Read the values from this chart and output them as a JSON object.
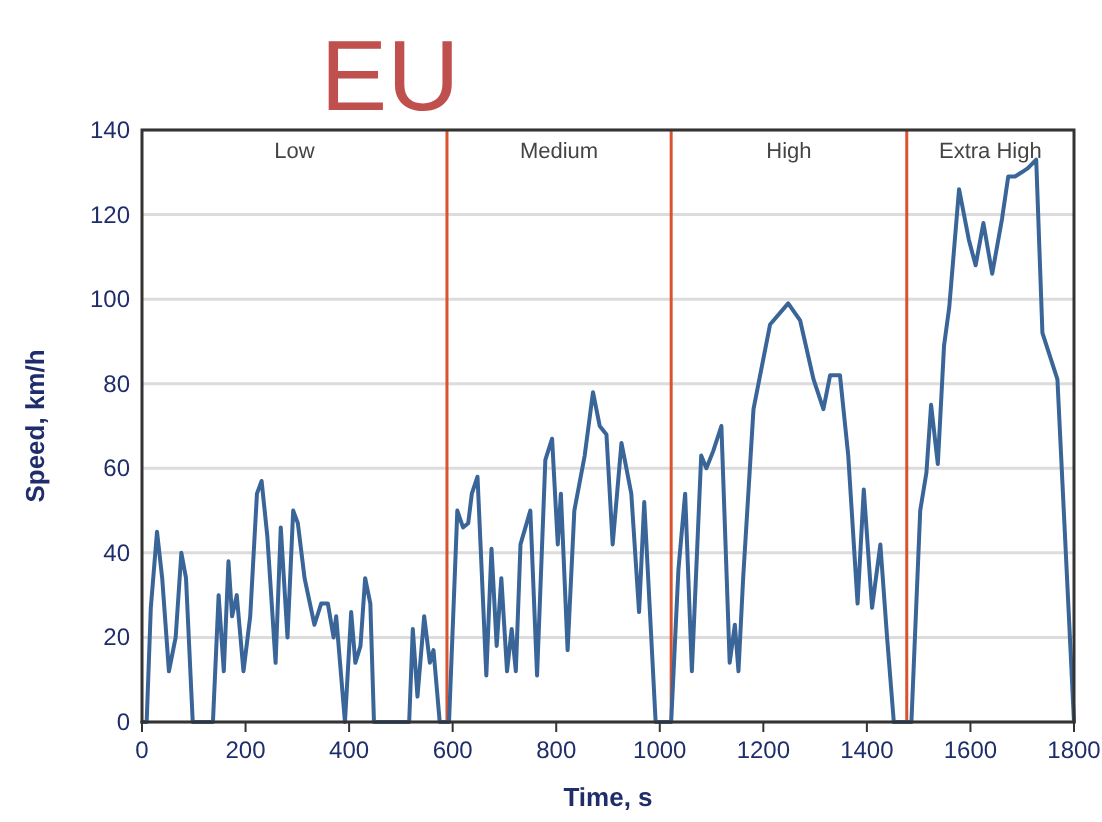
{
  "chart_data": {
    "type": "line",
    "title": "EU",
    "xlabel": "Time, s",
    "ylabel": "Speed, km/h",
    "xlim": [
      0,
      1800
    ],
    "xticks": [
      0,
      200,
      400,
      600,
      800,
      1000,
      1200,
      1400,
      1600,
      1800
    ],
    "ylim": [
      0,
      140
    ],
    "yticks": [
      0,
      20,
      40,
      60,
      80,
      100,
      120,
      140
    ],
    "grid": "y",
    "line_style": "solid",
    "marker": "none",
    "x": [
      0,
      9,
      17,
      29,
      39,
      52,
      65,
      76,
      85,
      98,
      137,
      148,
      158,
      167,
      174,
      183,
      196,
      209,
      222,
      231,
      242,
      258,
      268,
      281,
      292,
      301,
      314,
      333,
      346,
      359,
      370,
      375,
      392,
      404,
      412,
      422,
      431,
      441,
      448,
      516,
      523,
      532,
      545,
      556,
      563,
      575,
      593,
      609,
      620,
      630,
      637,
      648,
      665,
      675,
      685,
      694,
      705,
      714,
      722,
      731,
      750,
      763,
      779,
      792,
      803,
      809,
      822,
      835,
      855,
      871,
      884,
      897,
      909,
      926,
      945,
      960,
      970,
      992,
      1022,
      1036,
      1049,
      1062,
      1080,
      1090,
      1103,
      1119,
      1135,
      1145,
      1152,
      1161,
      1181,
      1213,
      1248,
      1271,
      1297,
      1316,
      1329,
      1348,
      1364,
      1382,
      1394,
      1410,
      1426,
      1439,
      1452,
      1486,
      1503,
      1515,
      1524,
      1537,
      1549,
      1559,
      1578,
      1597,
      1610,
      1625,
      1642,
      1661,
      1673,
      1686,
      1699,
      1711,
      1727,
      1739,
      1768,
      1800
    ],
    "series": [
      {
        "color": "#3a6598",
        "values": [
          0,
          0,
          27,
          45,
          34,
          12,
          20,
          40,
          34,
          0,
          0,
          30,
          12,
          38,
          25,
          30,
          12,
          25,
          54,
          57,
          44,
          14,
          46,
          20,
          50,
          47,
          34,
          23,
          28,
          28,
          20,
          25,
          0,
          26,
          14,
          18,
          34,
          28,
          0,
          0,
          22,
          6,
          25,
          14,
          17,
          0,
          0,
          50,
          46,
          47,
          54,
          58,
          11,
          41,
          18,
          34,
          12,
          22,
          12,
          42,
          50,
          11,
          62,
          67,
          42,
          54,
          17,
          50,
          63,
          78,
          70,
          68,
          42,
          66,
          54,
          26,
          52,
          0,
          0,
          36,
          54,
          12,
          63,
          60,
          64,
          70,
          14,
          23,
          12,
          34,
          74,
          94,
          99,
          95,
          81,
          74,
          82,
          82,
          63,
          28,
          55,
          27,
          42,
          20,
          0,
          0,
          50,
          59,
          75,
          61,
          89,
          98,
          126,
          114,
          108,
          118,
          106,
          119,
          129,
          129,
          130,
          131,
          133,
          92,
          81,
          0
        ]
      }
    ],
    "ref_lines": [
      {
        "axis": "x",
        "value": 589,
        "color": "#d9542e"
      },
      {
        "axis": "x",
        "value": 1022,
        "color": "#d9542e"
      },
      {
        "axis": "x",
        "value": 1477,
        "color": "#d9542e"
      }
    ],
    "annotations": [
      "Low",
      "Medium",
      "High",
      "Extra High"
    ]
  }
}
